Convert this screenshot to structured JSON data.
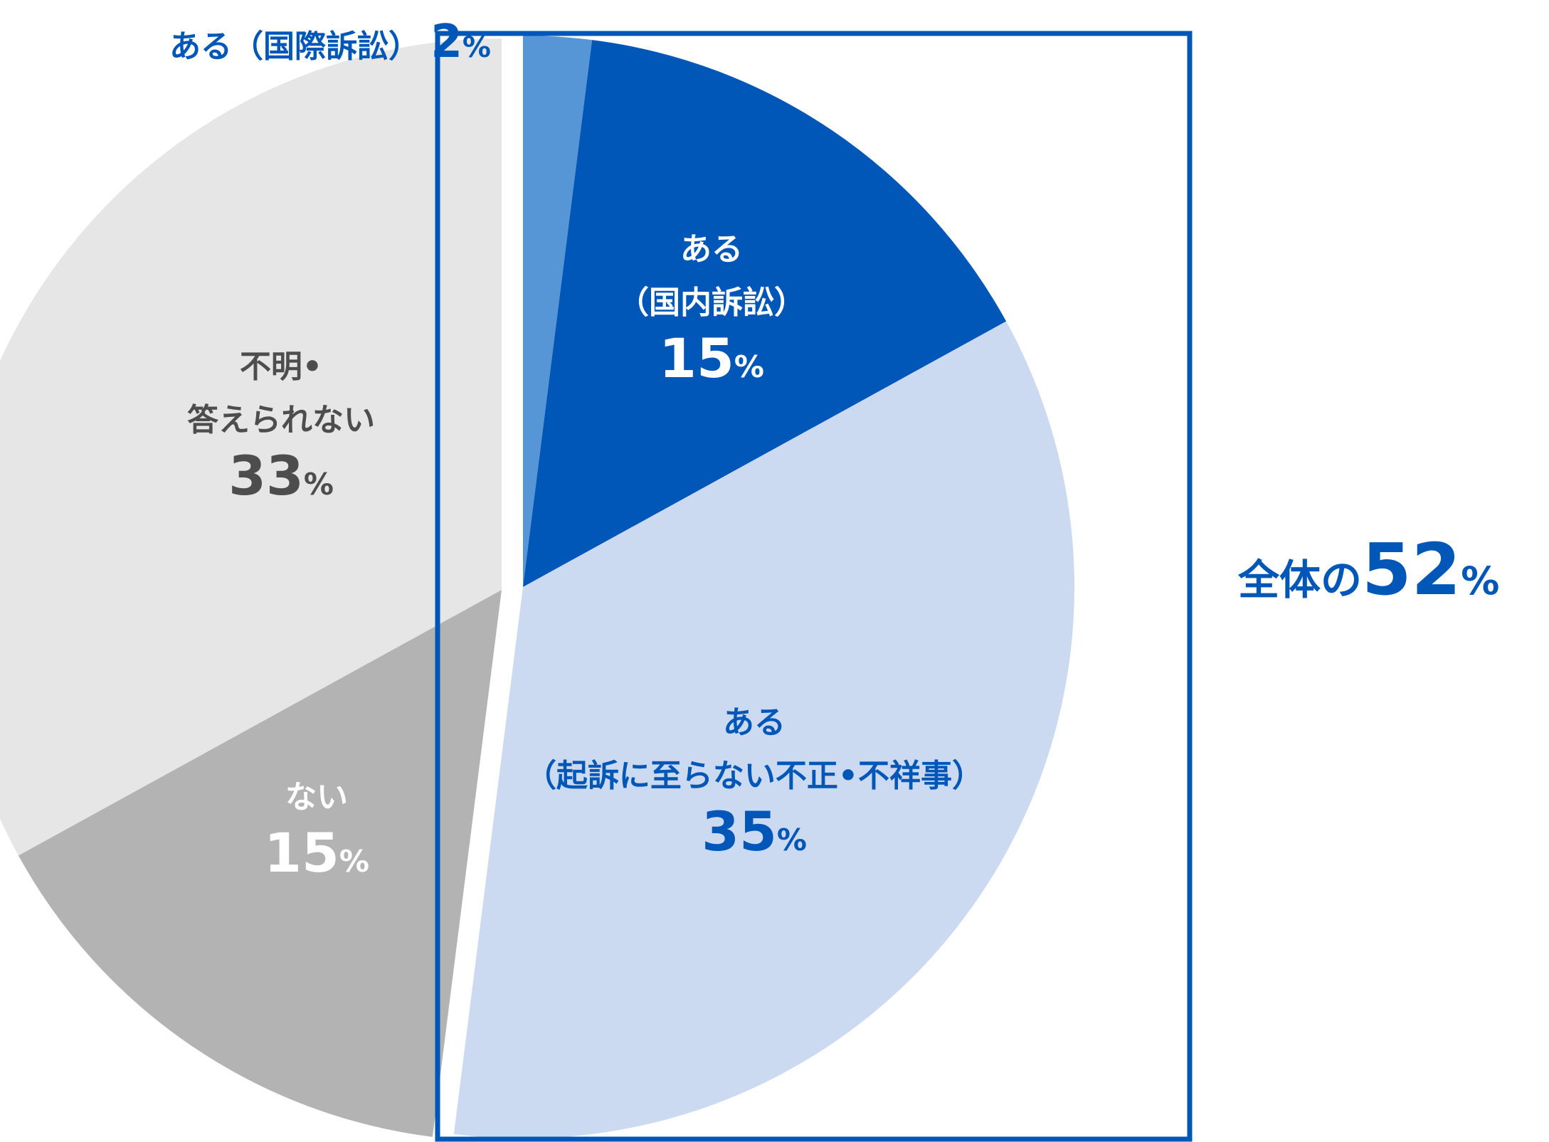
{
  "chart_data": {
    "type": "pie",
    "slices": [
      {
        "id": "intl",
        "label": "ある（国際訴訟）",
        "lines": [
          "ある（国際訴訟）"
        ],
        "value": 2,
        "unit": "%",
        "color": "#5796d6",
        "text_color": "#0057b7"
      },
      {
        "id": "domestic",
        "label": "ある（国内訴訟）",
        "lines": [
          "ある",
          "（国内訴訟）"
        ],
        "value": 15,
        "unit": "%",
        "color": "#0057b7",
        "text_color": "#ffffff"
      },
      {
        "id": "misconduct",
        "label": "ある（起訴に至らない不正•不祥事）",
        "lines": [
          "ある",
          "（起訴に至らない不正•不祥事）"
        ],
        "value": 35,
        "unit": "%",
        "color": "#ccdaf1",
        "text_color": "#0057b7"
      },
      {
        "id": "none",
        "label": "ない",
        "lines": [
          "ない"
        ],
        "value": 15,
        "unit": "%",
        "color": "#b3b3b3",
        "text_color": "#ffffff"
      },
      {
        "id": "unknown",
        "label": "不明•答えられない",
        "lines": [
          "不明•",
          "答えられない"
        ],
        "value": 33,
        "unit": "%",
        "color": "#e6e6e6",
        "text_color": "#4d4d4d"
      }
    ],
    "highlight": {
      "covers": [
        "intl",
        "domestic",
        "misconduct"
      ],
      "prefix": "全体の",
      "value": 52,
      "unit": "%",
      "border_color": "#0057b7",
      "text_color": "#0057b7"
    }
  }
}
